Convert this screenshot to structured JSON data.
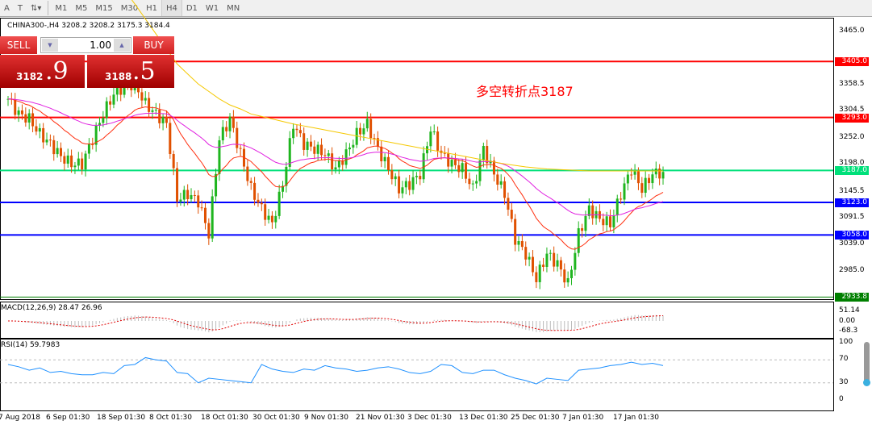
{
  "toolbar": {
    "items": [
      "A",
      "T",
      "M1",
      "M5",
      "M15",
      "M30",
      "H1",
      "H4",
      "D1",
      "W1",
      "MN"
    ],
    "active": "H4"
  },
  "header": {
    "symbol_line": "CHINA300-,H4  3208.2 3208.2 3175.3 3184.4"
  },
  "trade": {
    "sell": "SELL",
    "buy": "BUY",
    "lot": "1.00",
    "sell_small": "3182",
    "sell_big": ".9",
    "buy_small": "3188",
    "buy_big": ".5"
  },
  "annotation": "多空转折点3187",
  "price_axis": [
    "3465.0",
    "3358.5",
    "3304.5",
    "3252.0",
    "3198.0",
    "3145.5",
    "3091.5",
    "3039.0",
    "2985.0"
  ],
  "levels": [
    {
      "label": "3405.0",
      "value": 3405,
      "color": "#ff0000"
    },
    {
      "label": "3293.0",
      "value": 3293,
      "color": "#ff0000"
    },
    {
      "label": "3187.0",
      "value": 3187,
      "color": "#00e07a"
    },
    {
      "label": "3123.0",
      "value": 3123,
      "color": "#0000ff"
    },
    {
      "label": "3058.0",
      "value": 3058,
      "color": "#0000ff"
    },
    {
      "label": "2933.8",
      "value": 2933.8,
      "color": "#008000"
    }
  ],
  "macd": {
    "label": "MACD(12,26,9) 28.47 26.96",
    "ticks": [
      "51.14",
      "0.00",
      "-68.3"
    ]
  },
  "rsi": {
    "label": "RSI(14) 59.7983",
    "ticks": [
      "100",
      "70",
      "30",
      "0"
    ],
    "values": [
      62,
      58,
      52,
      56,
      48,
      50,
      46,
      44,
      44,
      48,
      46,
      60,
      62,
      74,
      70,
      68,
      48,
      46,
      30,
      38,
      36,
      34,
      32,
      30,
      62,
      54,
      50,
      48,
      54,
      52,
      60,
      56,
      54,
      50,
      52,
      56,
      58,
      54,
      48,
      46,
      50,
      62,
      60,
      48,
      46,
      52,
      52,
      44,
      38,
      34,
      28,
      38,
      36,
      34,
      52,
      54,
      56,
      60,
      62,
      66,
      62,
      64,
      60
    ]
  },
  "time_axis": [
    "7 Aug 2018",
    "6 Sep 01:30",
    "18 Sep 01:30",
    "8 Oct 01:30",
    "18 Oct 01:30",
    "30 Oct 01:30",
    "9 Nov 01:30",
    "21 Nov 01:30",
    "3 Dec 01:30",
    "13 Dec 01:30",
    "25 Dec 01:30",
    "7 Jan 01:30",
    "17 Jan 01:30"
  ],
  "chart_data": {
    "type": "candlestick",
    "symbol": "CHINA300-",
    "timeframe": "H4",
    "closes": [
      3330,
      3300,
      3290,
      3260,
      3240,
      3215,
      3200,
      3200,
      3250,
      3300,
      3340,
      3355,
      3360,
      3320,
      3300,
      3280,
      3130,
      3140,
      3125,
      3060,
      3250,
      3290,
      3220,
      3150,
      3110,
      3080,
      3160,
      3280,
      3240,
      3230,
      3220,
      3190,
      3220,
      3260,
      3280,
      3230,
      3190,
      3150,
      3160,
      3180,
      3270,
      3220,
      3200,
      3190,
      3150,
      3230,
      3180,
      3140,
      3050,
      3020,
      2970,
      3020,
      3000,
      2960,
      3060,
      3110,
      3090,
      3080,
      3140,
      3190,
      3150,
      3180,
      3184
    ],
    "ma_slow": [
      null,
      null,
      null,
      null,
      null,
      null,
      null,
      null,
      null,
      null,
      null,
      null,
      3520,
      3490,
      3460,
      3430,
      3400,
      3380,
      3360,
      3345,
      3330,
      3318,
      3310,
      3300,
      3295,
      3290,
      3285,
      3280,
      3276,
      3272,
      3268,
      3264,
      3260,
      3256,
      3252,
      3248,
      3244,
      3240,
      3236,
      3232,
      3228,
      3224,
      3220,
      3216,
      3212,
      3208,
      3204,
      3200,
      3197,
      3194,
      3192,
      3190,
      3189,
      3188,
      3187,
      3186,
      3186,
      3186,
      3186,
      3186,
      3186,
      3186,
      3186
    ]
  }
}
